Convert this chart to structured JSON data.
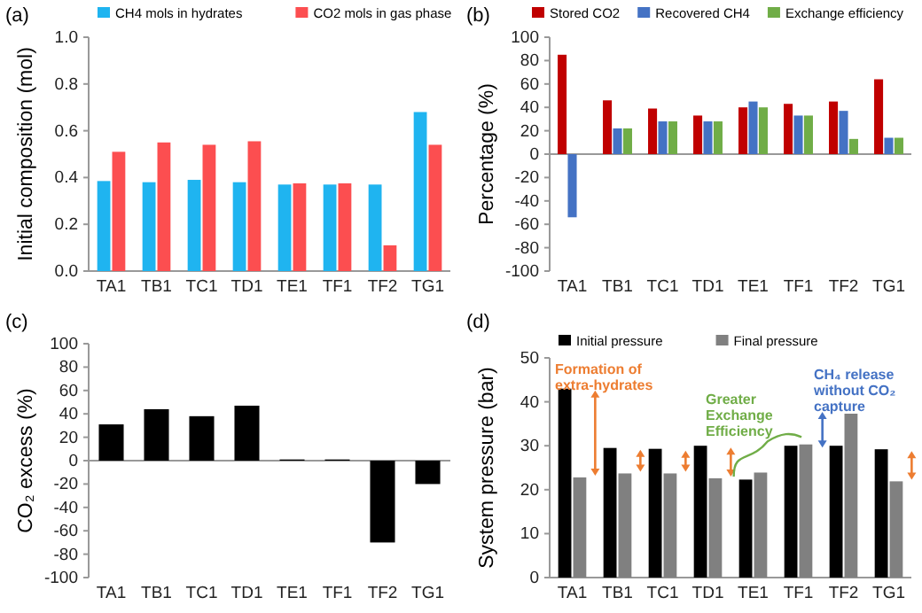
{
  "chart_data": [
    {
      "type": "bar",
      "title": "(a)",
      "ylabel": "Initial composition (mol)",
      "categories": [
        "TA1",
        "TB1",
        "TC1",
        "TD1",
        "TE1",
        "TF1",
        "TF2",
        "TG1"
      ],
      "series": [
        {
          "name": "CH4 mols in hydrates",
          "color": "#1fb4f0",
          "values": [
            0.385,
            0.38,
            0.39,
            0.38,
            0.37,
            0.37,
            0.37,
            0.68
          ]
        },
        {
          "name": "CO2 mols in gas phase",
          "color": "#fc4e50",
          "values": [
            0.51,
            0.55,
            0.54,
            0.555,
            0.375,
            0.375,
            0.11,
            0.54
          ]
        }
      ],
      "ylim": [
        0,
        1
      ],
      "yticks": [
        {
          "value": 0,
          "label": "0.0"
        },
        {
          "value": 0.2,
          "label": "0.2"
        },
        {
          "value": 0.4,
          "label": "0.4"
        },
        {
          "value": 0.6,
          "label": "0.6"
        },
        {
          "value": 0.8,
          "label": "0.8"
        },
        {
          "value": 1,
          "label": "1.0"
        }
      ],
      "legend": "top"
    },
    {
      "type": "bar",
      "title": "(b)",
      "ylabel": "Percentage (%)",
      "categories": [
        "TA1",
        "TB1",
        "TC1",
        "TD1",
        "TE1",
        "TF1",
        "TF2",
        "TG1"
      ],
      "series": [
        {
          "name": "Stored CO2",
          "color": "#c00000",
          "values": [
            85,
            46,
            39,
            33,
            40,
            43,
            45,
            64
          ]
        },
        {
          "name": "Recovered CH4",
          "color": "#4472c4",
          "values": [
            -54,
            22,
            28,
            28,
            45,
            33,
            37,
            14
          ]
        },
        {
          "name": "Exchange efficiency",
          "color": "#70ad47",
          "values": [
            null,
            22,
            28,
            28,
            40,
            33,
            13,
            14
          ]
        }
      ],
      "ylim": [
        -100,
        100
      ],
      "yticks": [
        -100,
        -80,
        -60,
        -40,
        -20,
        0,
        20,
        40,
        60,
        80,
        100
      ],
      "legend": "top"
    },
    {
      "type": "bar",
      "title": "(c)",
      "ylabel": "CO₂ excess (%)",
      "categories": [
        "TA1",
        "TB1",
        "TC1",
        "TD1",
        "TE1",
        "TF1",
        "TF2",
        "TG1"
      ],
      "series": [
        {
          "color": "#000000",
          "values": [
            31,
            44,
            38,
            47,
            1,
            1,
            -70,
            -20
          ]
        }
      ],
      "ylim": [
        -100,
        100
      ],
      "yticks": [
        -100,
        -80,
        -60,
        -40,
        -20,
        0,
        20,
        40,
        60,
        80,
        100
      ],
      "legend": false
    },
    {
      "type": "bar",
      "title": "(d)",
      "ylabel": "System pressure (bar)",
      "categories": [
        "TA1",
        "TB1",
        "TC1",
        "TD1",
        "TE1",
        "TF1",
        "TF2",
        "TG1"
      ],
      "series": [
        {
          "name": "Initial pressure",
          "color": "#000000",
          "values": [
            43,
            29.5,
            29.3,
            30,
            22.3,
            30,
            30,
            29.2
          ]
        },
        {
          "name": "Final pressure",
          "color": "#808080",
          "values": [
            22.8,
            23.7,
            23.7,
            22.6,
            23.9,
            30.3,
            37.3,
            21.9
          ]
        }
      ],
      "ylim": [
        0,
        50
      ],
      "yticks": [
        0,
        10,
        20,
        30,
        40,
        50
      ],
      "legend": "top",
      "annotations": [
        "Formation of extra-hydrates",
        "Greater Exchange Efficiency",
        "CH₄ release without CO₂ capture"
      ]
    }
  ]
}
